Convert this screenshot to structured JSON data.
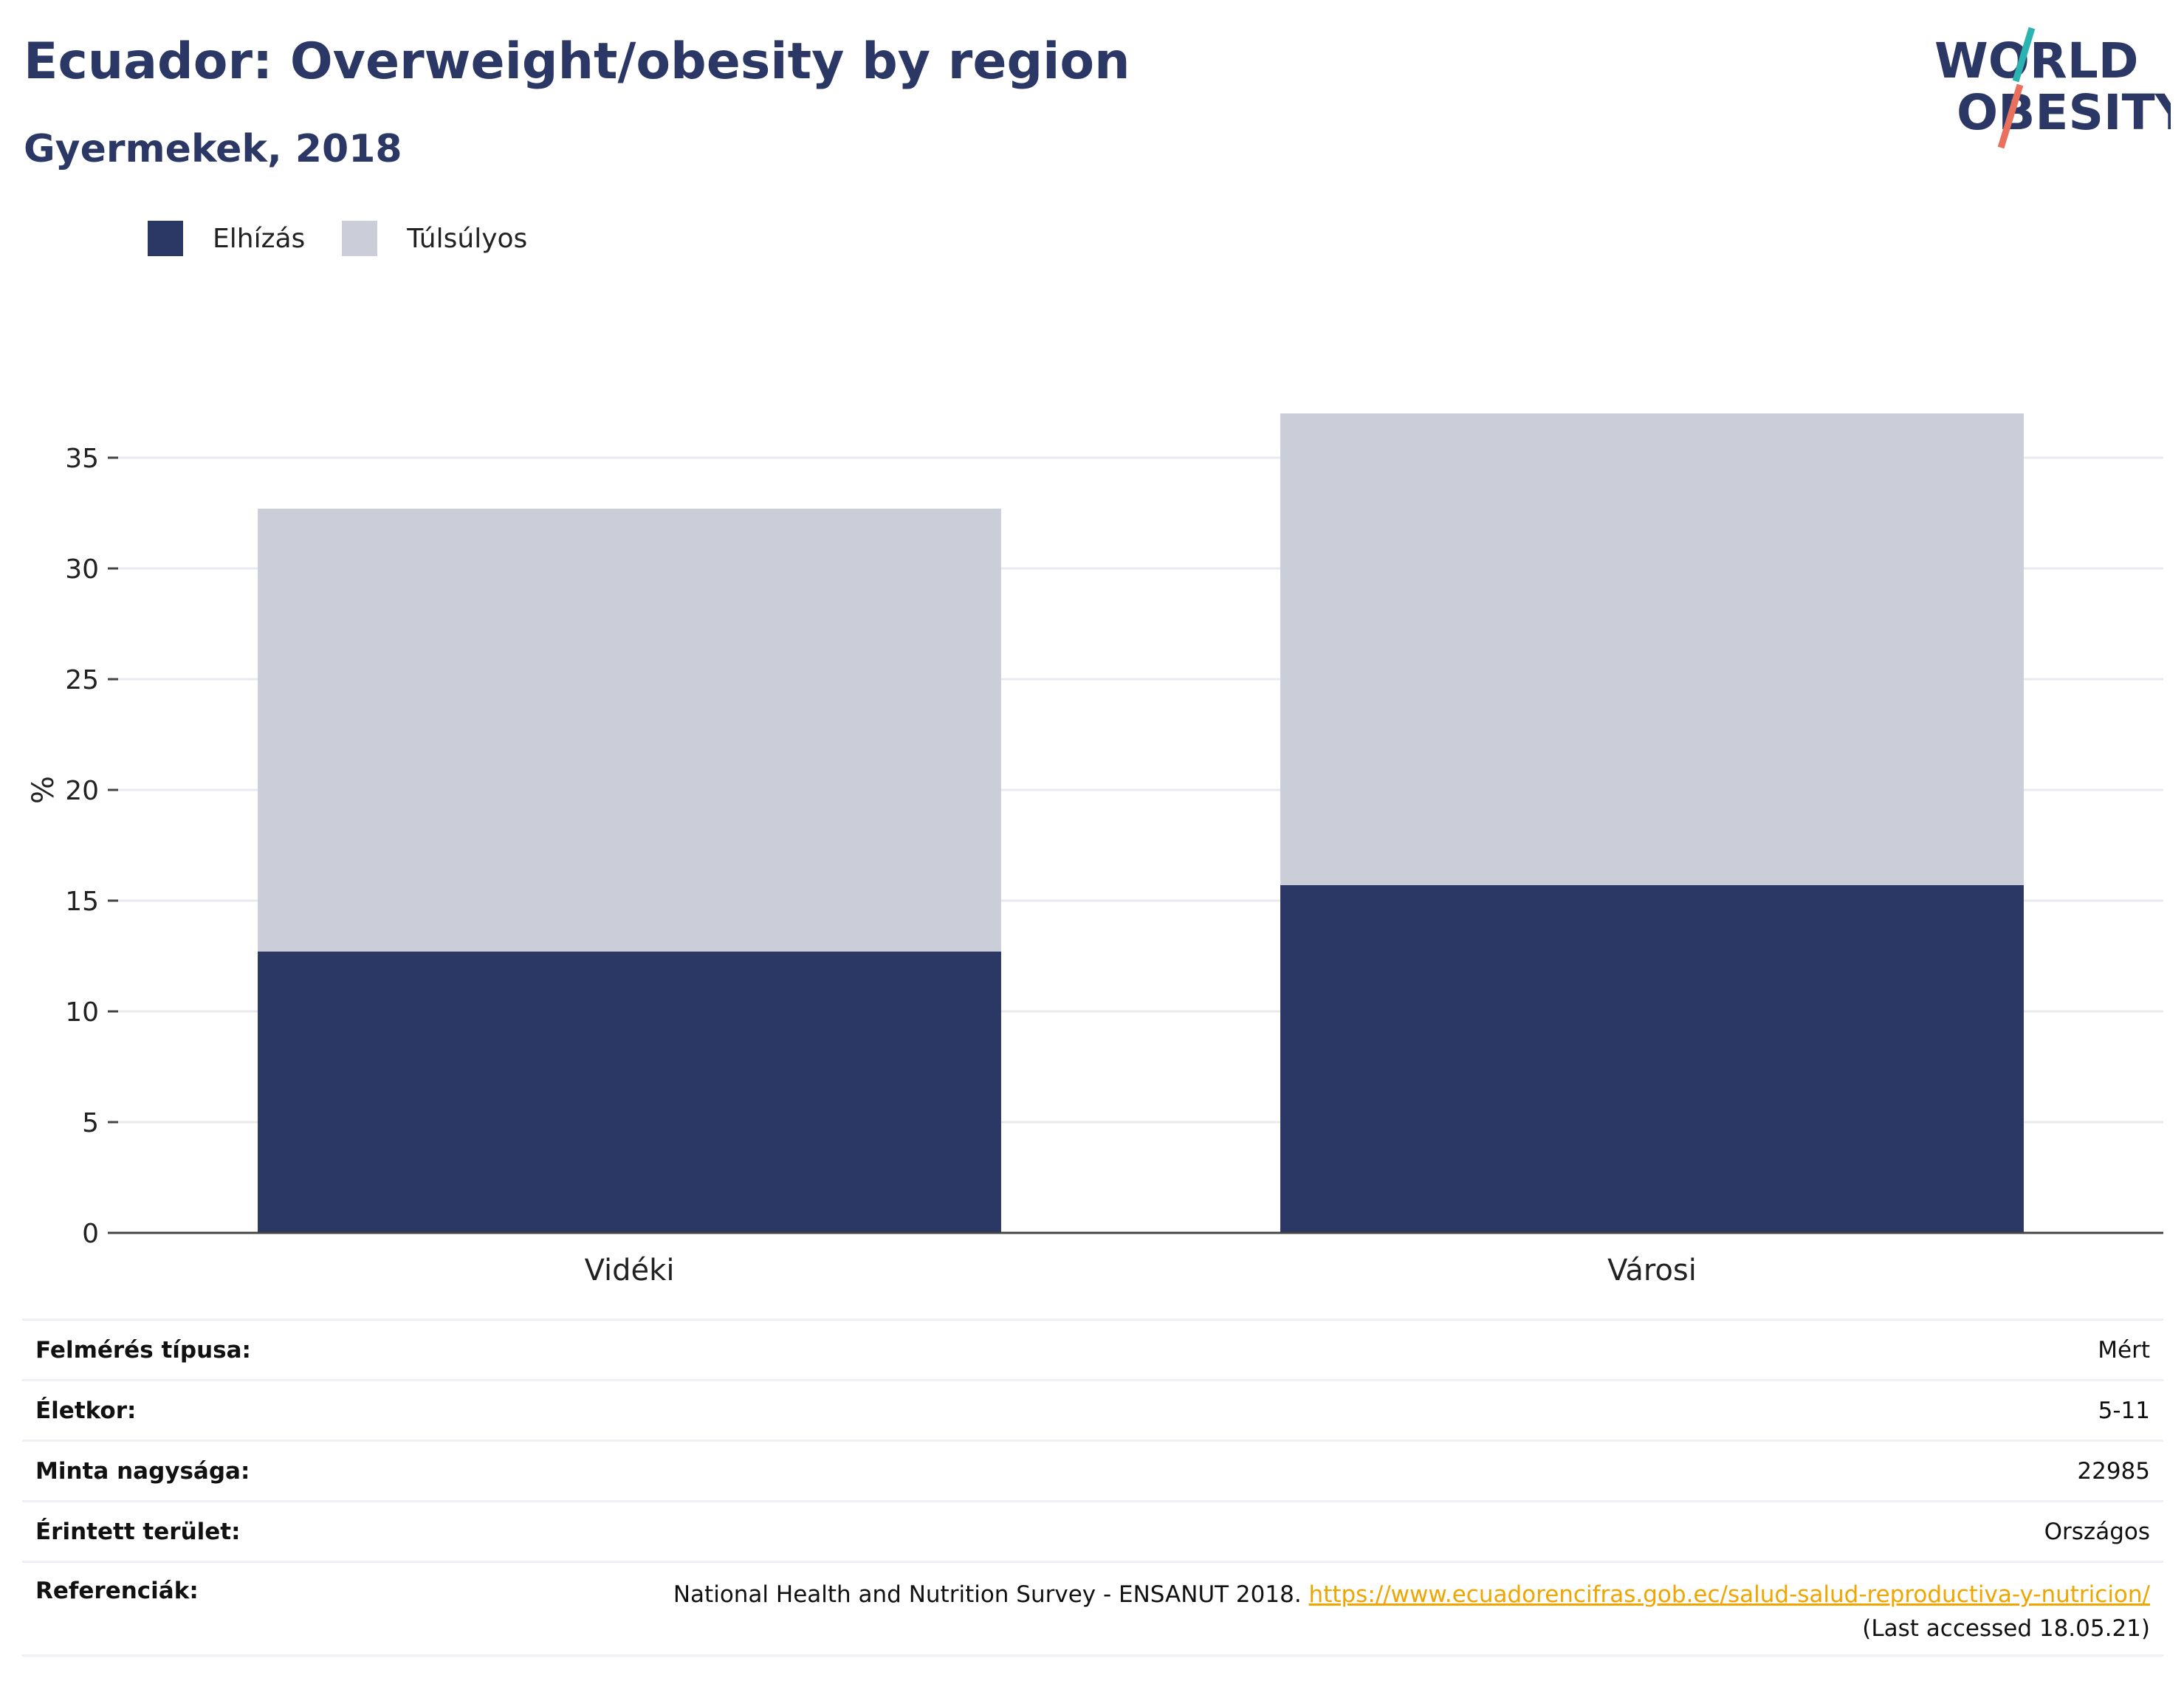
{
  "title": "Ecuador: Overweight/obesity by region",
  "subtitle": "Gyermekek, 2018",
  "logo": {
    "line1": "WORLD",
    "line2": "OBESITY"
  },
  "colors": {
    "obesity": "#2b3765",
    "overweight": "#cbcdd8",
    "title": "#2b3765",
    "link": "#f0a500",
    "logo_teal": "#2bb3b1",
    "logo_coral": "#e8705d"
  },
  "chart_data": {
    "type": "bar",
    "stacked": true,
    "categories": [
      "Vidéki",
      "Városi"
    ],
    "series": [
      {
        "name": "Elhízás",
        "color": "#2b3765",
        "values": [
          12.7,
          15.7
        ]
      },
      {
        "name": "Túlsúlyos",
        "color": "#cbcdd8",
        "values": [
          20.0,
          21.3
        ]
      }
    ],
    "ylabel": "%",
    "ylim": [
      0,
      40
    ],
    "yticks": [
      0,
      5,
      10,
      15,
      20,
      25,
      30,
      35
    ],
    "grid": true,
    "legend": "top-left"
  },
  "meta": {
    "survey_type": {
      "label": "Felmérés típusa:",
      "value": "Mért"
    },
    "age": {
      "label": "Életkor:",
      "value": "5-11"
    },
    "sample_size": {
      "label": "Minta nagysága:",
      "value": "22985"
    },
    "area": {
      "label": "Érintett terület:",
      "value": "Országos"
    },
    "references": {
      "label": "Referenciák:",
      "text": "National Health and Nutrition Survey - ENSANUT 2018. ",
      "link": "https://www.ecuadorencifras.gob.ec/salud-salud-reproductiva-y-nutricion/",
      "accessed": "(Last accessed 18.05.21)"
    }
  }
}
